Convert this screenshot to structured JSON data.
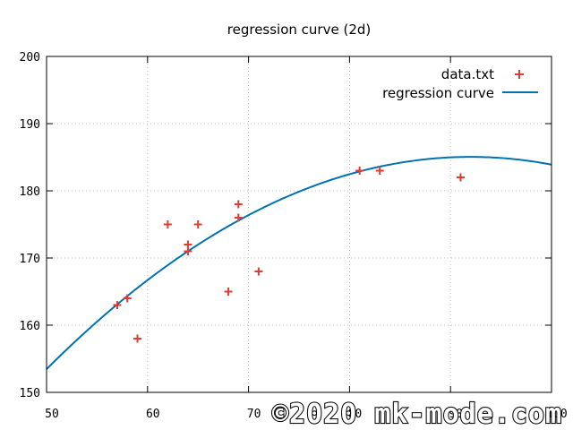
{
  "chart_data": {
    "type": "scatter",
    "title": "regression curve (2d)",
    "xlim": [
      50,
      100
    ],
    "ylim": [
      150,
      200
    ],
    "x_ticks": [
      50,
      60,
      70,
      80,
      90,
      100
    ],
    "y_ticks": [
      150,
      160,
      170,
      180,
      190,
      200
    ],
    "grid": true,
    "legend_position": "top-right",
    "series": [
      {
        "name": "data.txt",
        "kind": "points",
        "marker": "plus",
        "color": "#e03c31",
        "points": [
          [
            57,
            163
          ],
          [
            58,
            164
          ],
          [
            59,
            158
          ],
          [
            62,
            175
          ],
          [
            64,
            172
          ],
          [
            64,
            171
          ],
          [
            65,
            175
          ],
          [
            68,
            165
          ],
          [
            69,
            178
          ],
          [
            69,
            176
          ],
          [
            71,
            168
          ],
          [
            81,
            183
          ],
          [
            83,
            183
          ],
          [
            91,
            182
          ]
        ]
      },
      {
        "name": "regression curve",
        "kind": "line",
        "color": "#0072b2",
        "equation": "y = 33.4 + 3.297*x - 0.01792*x^2",
        "coefficients": [
          33.4,
          3.297,
          -0.01792
        ]
      }
    ]
  },
  "watermark": "©2020 mk-mode.com"
}
